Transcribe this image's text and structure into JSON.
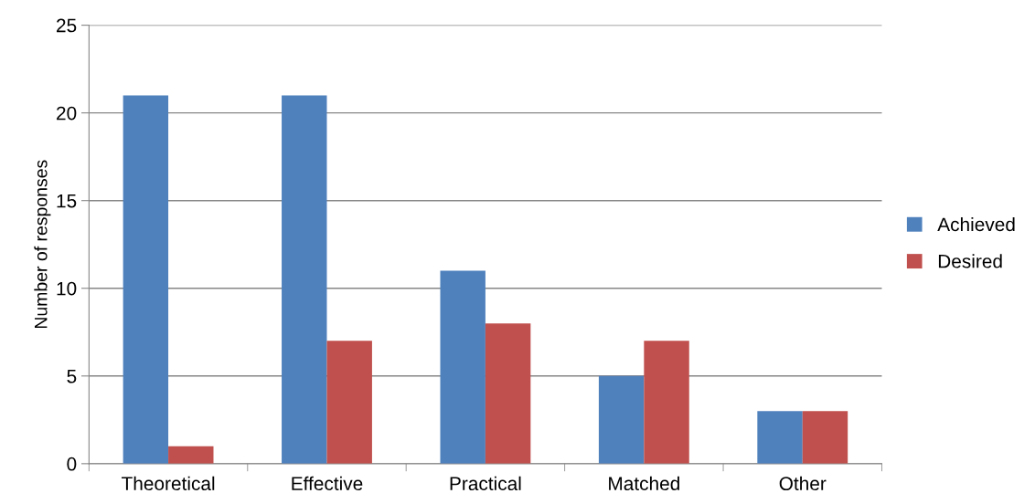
{
  "chart_data": {
    "type": "bar",
    "ylabel": "Number of responses",
    "categories": [
      "Theoretical",
      "Effective",
      "Practical",
      "Matched",
      "Other"
    ],
    "series": [
      {
        "name": "Achieved",
        "color": "#4f81bd",
        "values": [
          21,
          21,
          11,
          5,
          3
        ]
      },
      {
        "name": "Desired",
        "color": "#c0504d",
        "values": [
          1,
          7,
          8,
          7,
          3
        ]
      }
    ],
    "ylim": [
      0,
      25
    ],
    "yticks": [
      0,
      5,
      10,
      15,
      20,
      25
    ],
    "grid": "y",
    "legend": "right"
  }
}
